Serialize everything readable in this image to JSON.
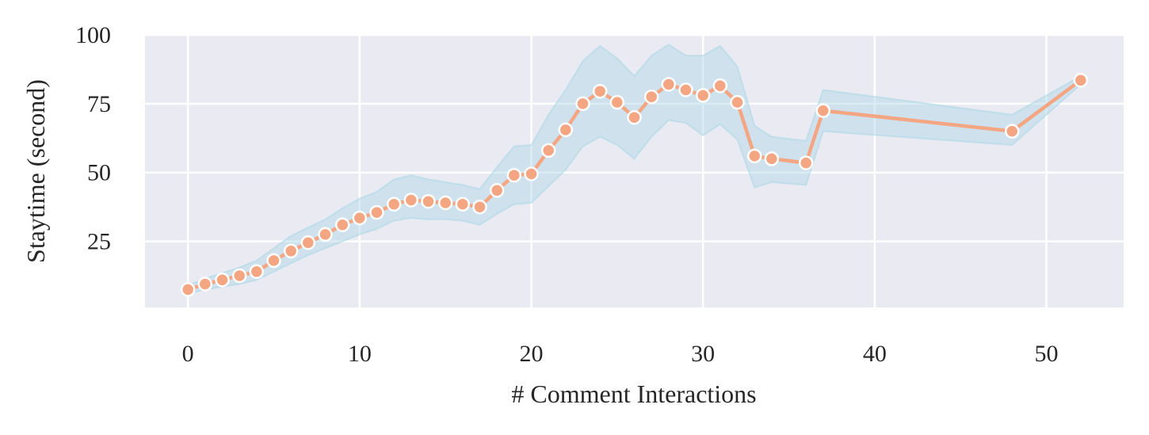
{
  "chart_data": {
    "type": "line",
    "title": "",
    "xlabel": "# Comment Interactions",
    "ylabel": "Staytime (second)",
    "xlim": [
      -2.5,
      54.5
    ],
    "ylim": [
      1,
      100
    ],
    "xticks": [
      0,
      10,
      20,
      30,
      40,
      50
    ],
    "yticks": [
      25,
      50,
      75,
      100
    ],
    "grid": true,
    "colors": {
      "background": "#eaeaf2",
      "grid": "#ffffff",
      "line": "#f4a582",
      "marker_edge": "#ffffff",
      "band": "#add8e6"
    },
    "series": [
      {
        "name": "Staytime",
        "x": [
          0,
          1,
          2,
          3,
          4,
          5,
          6,
          7,
          8,
          9,
          10,
          11,
          12,
          13,
          14,
          15,
          16,
          17,
          18,
          19,
          20,
          21,
          22,
          23,
          24,
          25,
          26,
          27,
          28,
          29,
          30,
          31,
          32,
          33,
          34,
          36,
          37,
          48,
          52
        ],
        "y": [
          7.5,
          9.5,
          11,
          12.5,
          14,
          18,
          21.5,
          24.5,
          27.5,
          31,
          33.5,
          35.5,
          38.5,
          40,
          39.5,
          39,
          38.5,
          37.5,
          43.5,
          49,
          49.5,
          58,
          65.5,
          75,
          79.5,
          75.5,
          70,
          77.5,
          82,
          80,
          78,
          81.5,
          75.5,
          56,
          55,
          53.5,
          72.5,
          65,
          83.5
        ],
        "ci_lower": [
          6,
          7.5,
          8.5,
          9.5,
          11,
          14,
          17,
          20,
          22.5,
          25,
          27.5,
          29.5,
          32.5,
          33.5,
          33,
          33,
          32.5,
          31,
          35,
          38.5,
          39,
          45,
          51,
          59.5,
          63,
          60,
          55,
          63,
          69,
          68,
          63.5,
          67.5,
          62,
          44.5,
          46.5,
          45.5,
          65,
          60,
          82
        ],
        "ci_upper": [
          9,
          11.5,
          13.5,
          15.5,
          18,
          22.5,
          27,
          30,
          33,
          37,
          40.5,
          43,
          47.5,
          49,
          47.5,
          46.5,
          45.5,
          44,
          52,
          59.5,
          60,
          71,
          80,
          90.5,
          96,
          91.5,
          85,
          92.5,
          96.5,
          92.5,
          92.5,
          96,
          88.5,
          67,
          63,
          61.5,
          80,
          71,
          85
        ]
      }
    ]
  }
}
